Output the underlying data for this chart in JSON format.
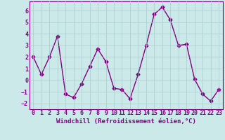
{
  "x": [
    0,
    1,
    2,
    3,
    4,
    5,
    6,
    7,
    8,
    9,
    10,
    11,
    12,
    13,
    14,
    15,
    16,
    17,
    18,
    19,
    20,
    21,
    22,
    23
  ],
  "y": [
    2,
    0.5,
    2,
    3.8,
    -1.2,
    -1.5,
    -0.3,
    1.2,
    2.7,
    1.6,
    -0.7,
    -0.8,
    -1.6,
    0.5,
    3.0,
    5.7,
    6.3,
    5.2,
    3.0,
    3.1,
    0.1,
    -1.2,
    -1.8,
    -0.8
  ],
  "line_color": "#800080",
  "marker": "D",
  "marker_size": 2.5,
  "background_color": "#cce9e9",
  "grid_color": "#a8cccc",
  "xlabel": "Windchill (Refroidissement éolien,°C)",
  "xlabel_fontsize": 6.5,
  "tick_fontsize": 6,
  "ylim": [
    -2.5,
    6.8
  ],
  "xlim": [
    -0.5,
    23.5
  ],
  "yticks": [
    -2,
    -1,
    0,
    1,
    2,
    3,
    4,
    5,
    6
  ],
  "xticks": [
    0,
    1,
    2,
    3,
    4,
    5,
    6,
    7,
    8,
    9,
    10,
    11,
    12,
    13,
    14,
    15,
    16,
    17,
    18,
    19,
    20,
    21,
    22,
    23
  ]
}
